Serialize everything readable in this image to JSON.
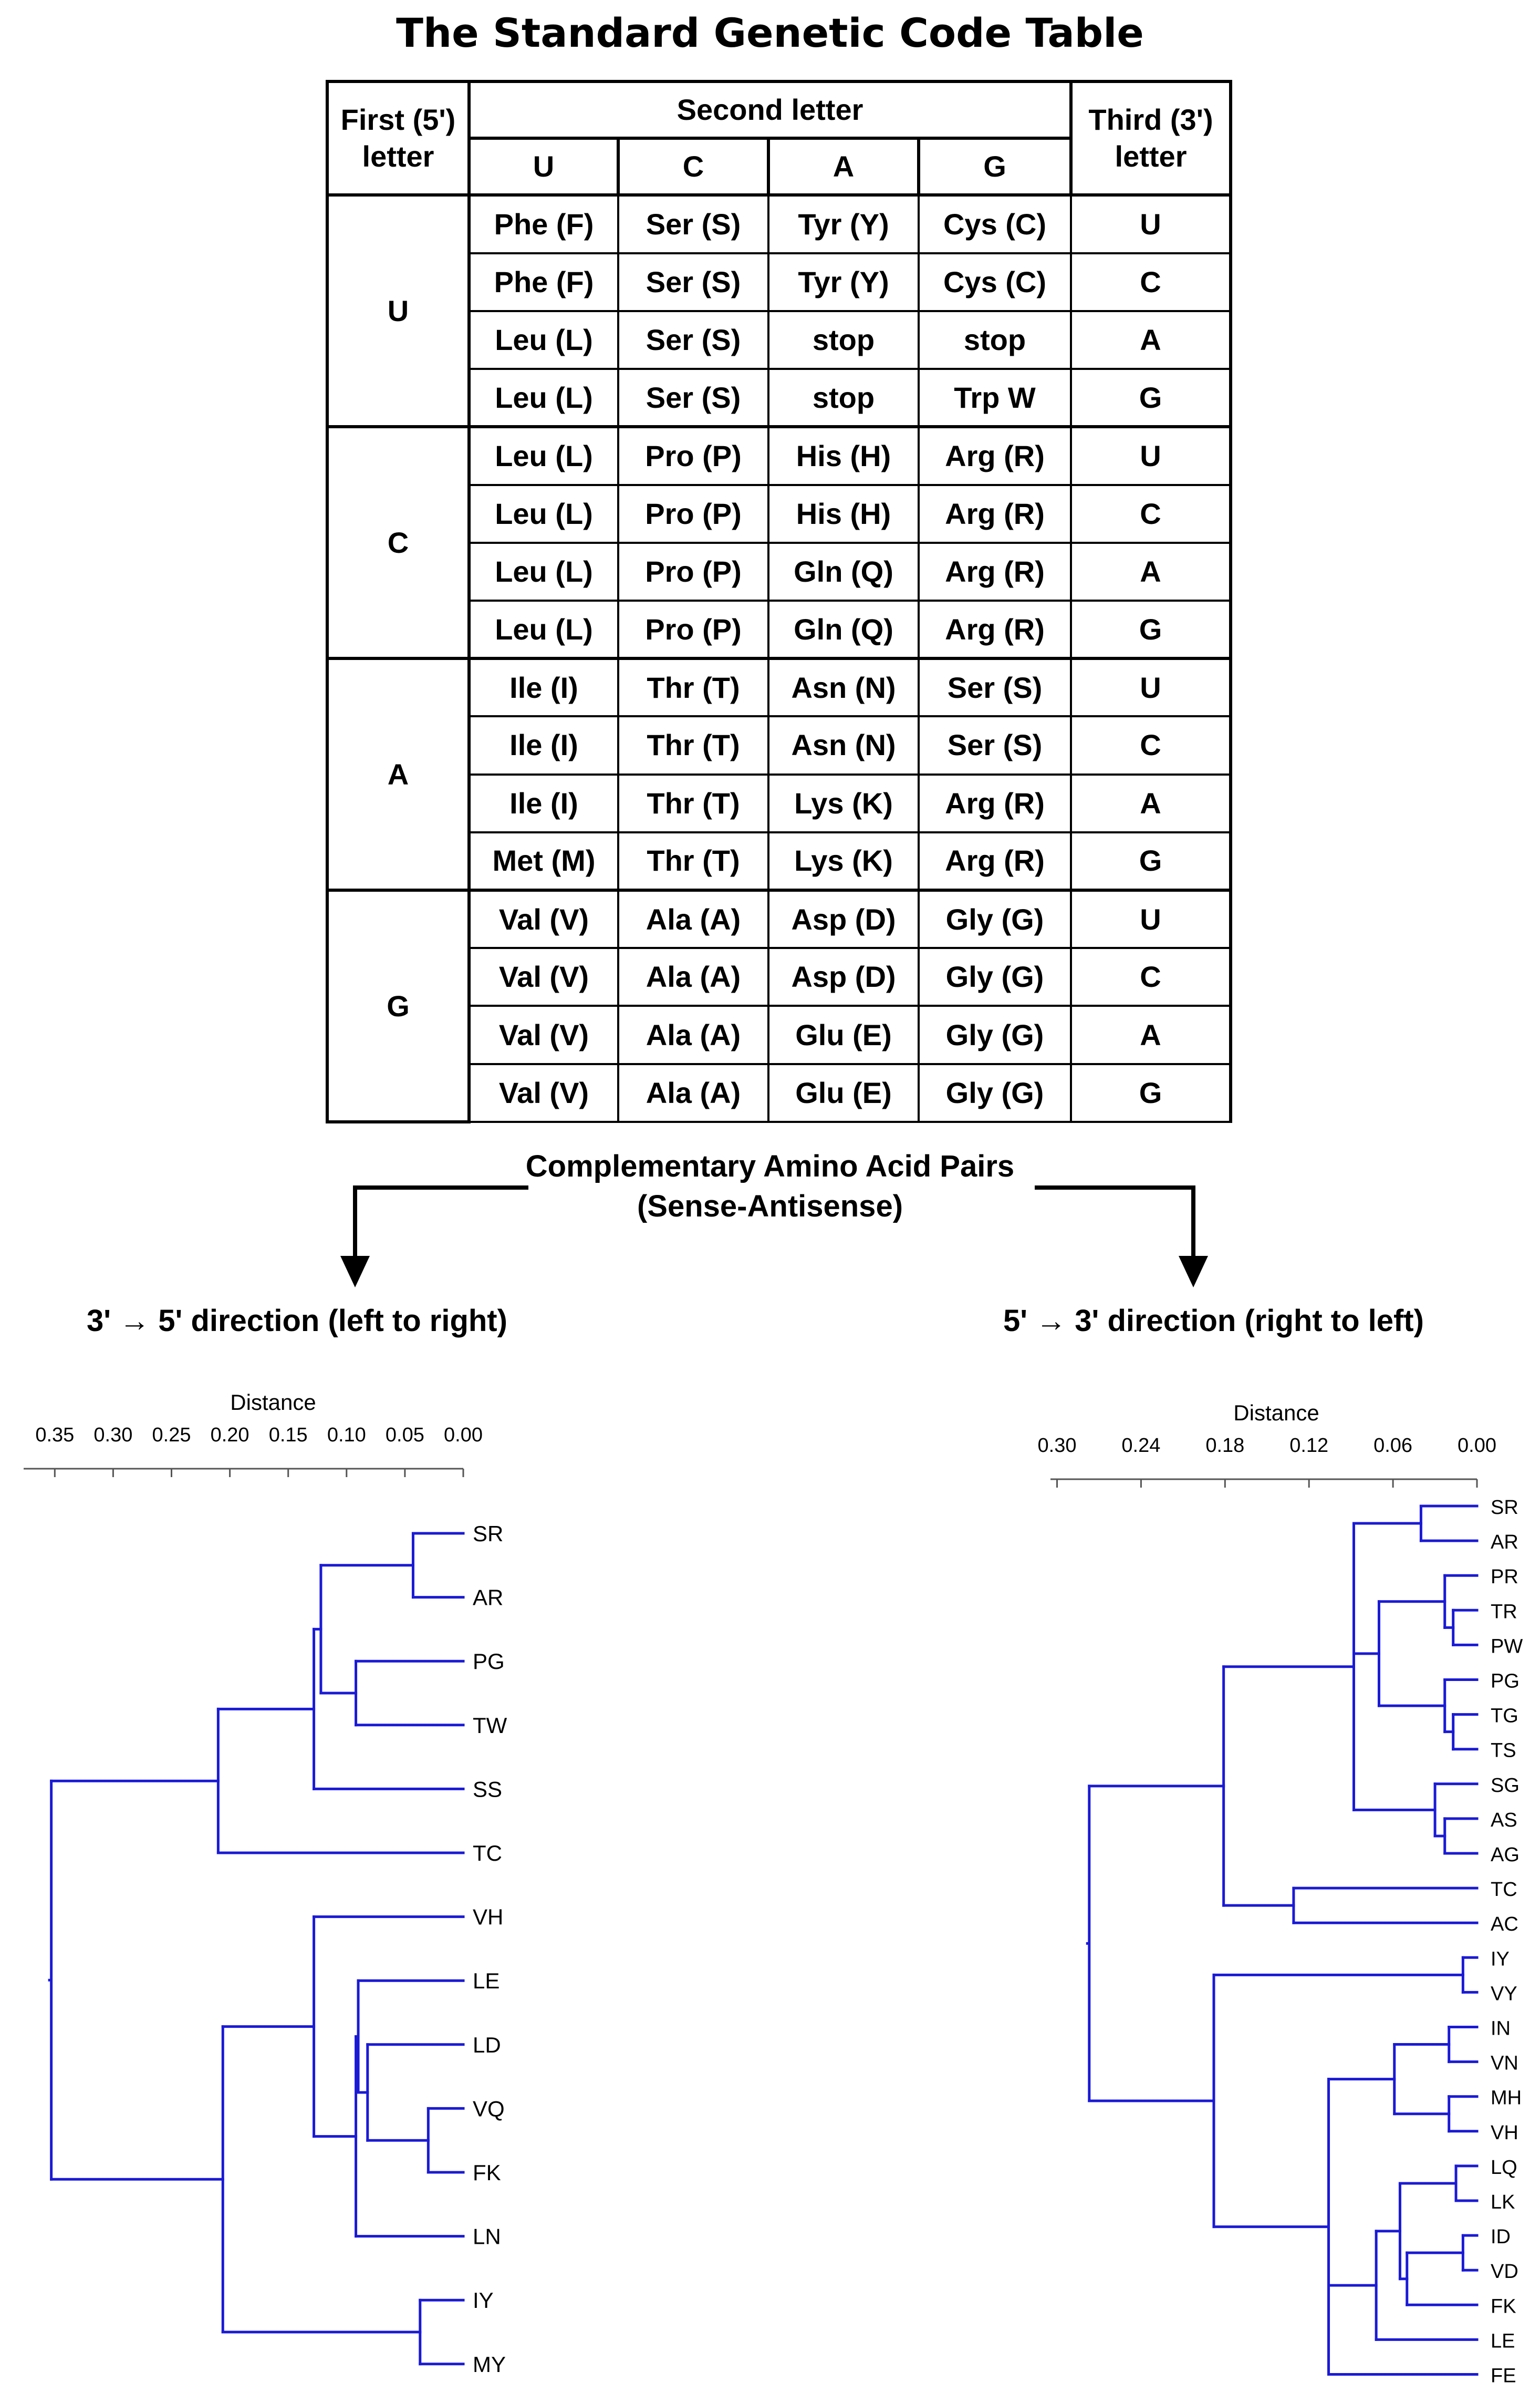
{
  "title": "The Standard Genetic Code Table",
  "table": {
    "header_first": [
      "First (5')",
      "letter"
    ],
    "header_second": "Second letter",
    "header_third": [
      "Third (3')",
      "letter"
    ],
    "second_letters": [
      "U",
      "C",
      "A",
      "G"
    ],
    "groups": [
      {
        "first": "U",
        "rows": [
          {
            "cells": [
              "Phe (F)",
              "Ser (S)",
              "Tyr (Y)",
              "Cys (C)"
            ],
            "third": "U"
          },
          {
            "cells": [
              "Phe (F)",
              "Ser (S)",
              "Tyr (Y)",
              "Cys (C)"
            ],
            "third": "C"
          },
          {
            "cells": [
              "Leu (L)",
              "Ser (S)",
              "stop",
              "stop"
            ],
            "third": "A"
          },
          {
            "cells": [
              "Leu (L)",
              "Ser (S)",
              "stop",
              "Trp W"
            ],
            "third": "G"
          }
        ]
      },
      {
        "first": "C",
        "rows": [
          {
            "cells": [
              "Leu (L)",
              "Pro (P)",
              "His (H)",
              "Arg (R)"
            ],
            "third": "U"
          },
          {
            "cells": [
              "Leu (L)",
              "Pro (P)",
              "His (H)",
              "Arg (R)"
            ],
            "third": "C"
          },
          {
            "cells": [
              "Leu (L)",
              "Pro (P)",
              "Gln (Q)",
              "Arg (R)"
            ],
            "third": "A"
          },
          {
            "cells": [
              "Leu (L)",
              "Pro (P)",
              "Gln (Q)",
              "Arg (R)"
            ],
            "third": "G"
          }
        ]
      },
      {
        "first": "A",
        "rows": [
          {
            "cells": [
              "Ile (I)",
              "Thr (T)",
              "Asn (N)",
              "Ser (S)"
            ],
            "third": "U"
          },
          {
            "cells": [
              "Ile (I)",
              "Thr (T)",
              "Asn (N)",
              "Ser (S)"
            ],
            "third": "C"
          },
          {
            "cells": [
              "Ile (I)",
              "Thr (T)",
              "Lys (K)",
              "Arg (R)"
            ],
            "third": "A"
          },
          {
            "cells": [
              "Met (M)",
              "Thr (T)",
              "Lys (K)",
              "Arg (R)"
            ],
            "third": "G"
          }
        ]
      },
      {
        "first": "G",
        "rows": [
          {
            "cells": [
              "Val (V)",
              "Ala (A)",
              "Asp (D)",
              "Gly (G)"
            ],
            "third": "U"
          },
          {
            "cells": [
              "Val (V)",
              "Ala (A)",
              "Asp (D)",
              "Gly (G)"
            ],
            "third": "C"
          },
          {
            "cells": [
              "Val (V)",
              "Ala (A)",
              "Glu (E)",
              "Gly (G)"
            ],
            "third": "A"
          },
          {
            "cells": [
              "Val (V)",
              "Ala (A)",
              "Glu (E)",
              "Gly (G)"
            ],
            "third": "G"
          }
        ]
      }
    ]
  },
  "caption": {
    "line1": "Complementary Amino Acid Pairs",
    "line2": "(Sense-Antisense)"
  },
  "left": {
    "direction": "3' → 5' direction (left to right)",
    "axis_title": "Distance",
    "ticks": [
      "0.35",
      "0.30",
      "0.25",
      "0.20",
      "0.15",
      "0.10",
      "0.05",
      "0.00"
    ],
    "tick_values": [
      0.35,
      0.3,
      0.25,
      0.2,
      0.15,
      0.1,
      0.05,
      0.0
    ],
    "leaves": [
      "SR",
      "AR",
      "PG",
      "TW",
      "SS",
      "TC",
      "VH",
      "LE",
      "LD",
      "VQ",
      "FK",
      "LN",
      "IY",
      "MY"
    ],
    "tree": {
      "h": 0.353,
      "c": [
        {
          "h": 0.21,
          "c": [
            {
              "h": 0.128,
              "c": [
                {
                  "h": 0.122,
                  "c": [
                    {
                      "h": 0.043,
                      "c": [
                        0,
                        1
                      ]
                    },
                    {
                      "h": 0.092,
                      "c": [
                        2,
                        3
                      ]
                    }
                  ]
                },
                4
              ]
            },
            5
          ]
        },
        {
          "h": 0.206,
          "c": [
            {
              "h": 0.128,
              "c": [
                6,
                {
                  "h": 0.092,
                  "c": [
                    {
                      "h": 0.09,
                      "c": [
                        7,
                        {
                          "h": 0.082,
                          "c": [
                            8,
                            {
                              "h": 0.03,
                              "c": [
                                9,
                                10
                              ]
                            }
                          ]
                        }
                      ]
                    },
                    11
                  ]
                }
              ]
            },
            {
              "h": 0.037,
              "c": [
                12,
                13
              ]
            }
          ]
        }
      ]
    }
  },
  "right": {
    "direction": "5' → 3'  direction (right to left)",
    "axis_title": "Distance",
    "ticks": [
      "0.30",
      "0.24",
      "0.18",
      "0.12",
      "0.06",
      "0.00"
    ],
    "tick_values": [
      0.3,
      0.24,
      0.18,
      0.12,
      0.06,
      0.0
    ],
    "leaves": [
      "SR",
      "AR",
      "PR",
      "TR",
      "PW",
      "PG",
      "TG",
      "TS",
      "SG",
      "AS",
      "AG",
      "TC",
      "AC",
      "IY",
      "VY",
      "IN",
      "VN",
      "MH",
      "VH",
      "LQ",
      "LK",
      "ID",
      "VD",
      "FK",
      "LE",
      "FE"
    ],
    "tree": {
      "h": 0.277,
      "c": [
        {
          "h": 0.181,
          "c": [
            {
              "h": 0.088,
              "c": [
                {
                  "h": 0.04,
                  "c": [
                    0,
                    1
                  ]
                },
                {
                  "h": 0.07,
                  "c": [
                    {
                      "h": 0.023,
                      "c": [
                        2,
                        {
                          "h": 0.017,
                          "c": [
                            3,
                            4
                          ]
                        }
                      ]
                    },
                    {
                      "h": 0.023,
                      "c": [
                        5,
                        {
                          "h": 0.017,
                          "c": [
                            6,
                            7
                          ]
                        }
                      ]
                    }
                  ]
                },
                {
                  "h": 0.03,
                  "c": [
                    8,
                    {
                      "h": 0.023,
                      "c": [
                        9,
                        10
                      ]
                    }
                  ]
                }
              ]
            },
            {
              "h": 0.131,
              "c": [
                11,
                12
              ]
            }
          ]
        },
        {
          "h": 0.188,
          "c": [
            {
              "h": 0.01,
              "c": [
                13,
                14
              ]
            },
            {
              "h": 0.106,
              "c": [
                {
                  "h": 0.059,
                  "c": [
                    {
                      "h": 0.02,
                      "c": [
                        15,
                        16
                      ]
                    },
                    {
                      "h": 0.02,
                      "c": [
                        17,
                        18
                      ]
                    }
                  ]
                },
                {
                  "h": 0.072,
                  "c": [
                    {
                      "h": 0.055,
                      "c": [
                        {
                          "h": 0.015,
                          "c": [
                            19,
                            20
                          ]
                        },
                        {
                          "h": 0.05,
                          "c": [
                            {
                              "h": 0.01,
                              "c": [
                                21,
                                22
                              ]
                            },
                            23
                          ]
                        }
                      ]
                    },
                    24
                  ]
                },
                25
              ]
            }
          ]
        }
      ]
    }
  },
  "colors": {
    "tree": "#1a1ad6",
    "text": "#000000",
    "axis": "#555555"
  }
}
